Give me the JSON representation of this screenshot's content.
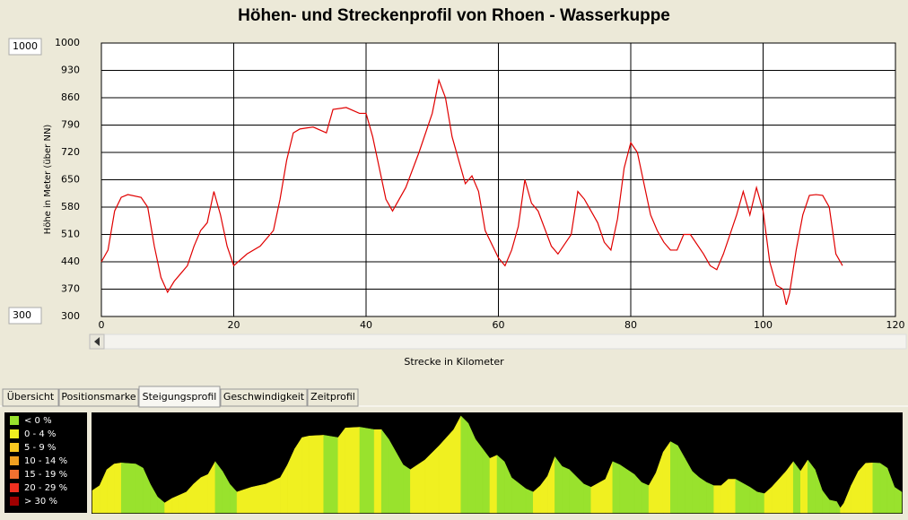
{
  "chart_data": {
    "type": "line",
    "title": "Höhen- und Streckenprofil von Rhoen - Wasserkuppe",
    "y_label": "Höhe in Meter (über NN)",
    "x_label": "Strecke in Kilometer",
    "x": [
      0,
      1,
      2,
      3,
      4,
      6,
      7,
      8,
      9,
      10,
      11,
      12,
      13,
      14,
      15,
      16,
      17,
      18,
      19,
      20,
      22,
      24,
      26,
      27,
      28,
      29,
      30,
      32,
      34,
      35,
      37,
      39,
      40,
      41,
      42,
      43,
      44,
      46,
      48,
      50,
      51,
      52,
      53,
      54,
      55,
      56,
      57,
      58,
      60,
      61,
      62,
      63,
      64,
      65,
      66,
      68,
      69,
      71,
      72,
      73,
      75,
      76,
      77,
      78,
      79,
      80,
      81,
      82,
      83,
      84,
      85,
      86,
      87,
      88,
      89,
      91,
      92,
      93,
      94,
      96,
      97,
      98,
      99,
      100,
      101,
      102,
      103,
      103.5,
      104,
      105,
      106,
      107,
      108,
      109,
      110,
      111,
      112
    ],
    "series": [
      {
        "color": "#e00000",
        "values": [
          440,
          470,
          570,
          605,
          612,
          605,
          580,
          480,
          400,
          362,
          390,
          410,
          430,
          480,
          520,
          540,
          620,
          560,
          480,
          430,
          460,
          480,
          520,
          600,
          700,
          770,
          780,
          785,
          770,
          830,
          835,
          820,
          820,
          760,
          680,
          600,
          570,
          630,
          720,
          820,
          905,
          860,
          760,
          700,
          640,
          660,
          620,
          520,
          450,
          430,
          470,
          530,
          650,
          590,
          570,
          480,
          460,
          510,
          620,
          600,
          540,
          490,
          470,
          550,
          680,
          745,
          720,
          640,
          560,
          520,
          490,
          470,
          470,
          510,
          510,
          460,
          430,
          420,
          460,
          560,
          620,
          560,
          630,
          570,
          440,
          380,
          370,
          330,
          360,
          470,
          560,
          610,
          612,
          610,
          580,
          460,
          430
        ]
      }
    ],
    "xlim": [
      0,
      120
    ],
    "xticks": [
      0,
      20,
      40,
      60,
      80,
      100,
      120
    ],
    "ylim": [
      300,
      1000
    ],
    "yticks": [
      300,
      370,
      440,
      510,
      580,
      650,
      720,
      790,
      860,
      930,
      1000
    ],
    "grid": true
  },
  "controls": {
    "y_max_field": "1000",
    "y_min_field": "300"
  },
  "tabs": [
    "Übersicht",
    "Positionsmarke",
    "Steigungsprofil",
    "Geschwindigkeit",
    "Zeitprofil"
  ],
  "active_tab": 2,
  "slope_legend": [
    {
      "label": "< 0 %",
      "color": "#99e22d"
    },
    {
      "label": "0 - 4 %",
      "color": "#f0f020"
    },
    {
      "label": "5 - 9 %",
      "color": "#f8c820"
    },
    {
      "label": "10 - 14 %",
      "color": "#f0a020"
    },
    {
      "label": "15 - 19 %",
      "color": "#f07030"
    },
    {
      "label": "20 - 29 %",
      "color": "#f03020"
    },
    {
      "label": "> 30 %",
      "color": "#a00000"
    }
  ]
}
